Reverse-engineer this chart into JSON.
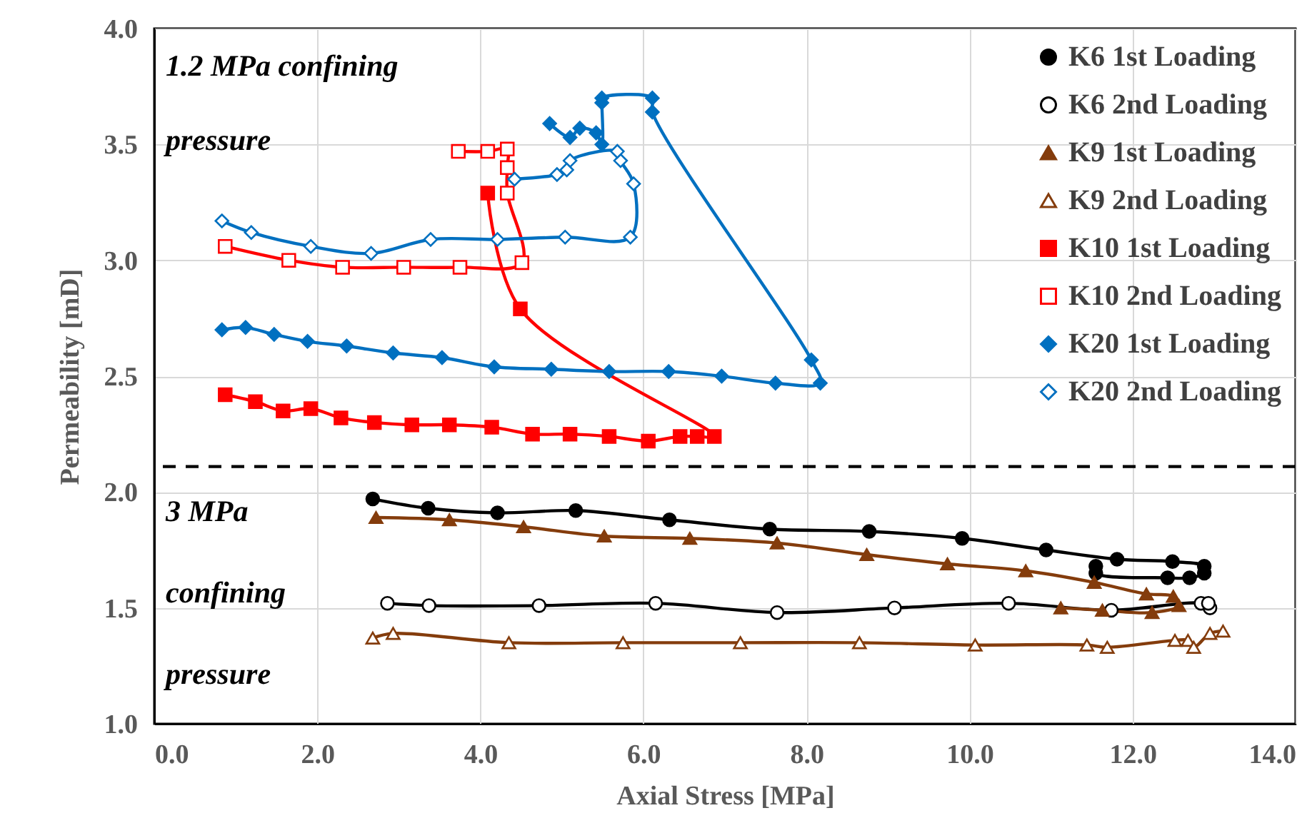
{
  "chart_data": {
    "type": "line",
    "xlabel": "Axial Stress [MPa]",
    "ylabel": "Permeability [mD]",
    "xlim": [
      0,
      14
    ],
    "xticks": [
      {
        "value": 0,
        "label": "0.0"
      },
      {
        "value": 2,
        "label": "2.0"
      },
      {
        "value": 4,
        "label": "4.0"
      },
      {
        "value": 6,
        "label": "6.0"
      },
      {
        "value": 8,
        "label": "8.0"
      },
      {
        "value": 10,
        "label": "10.0"
      },
      {
        "value": 12,
        "label": "12.0"
      },
      {
        "value": 14,
        "label": "14.0"
      }
    ],
    "ylim": [
      1,
      4
    ],
    "yticks": [
      {
        "value": 1,
        "label": "1.0"
      },
      {
        "value": 1.5,
        "label": "1.5"
      },
      {
        "value": 2,
        "label": "2.0"
      },
      {
        "value": 2.5,
        "label": "2.5"
      },
      {
        "value": 3,
        "label": "3.0"
      },
      {
        "value": 3.5,
        "label": "3.5"
      },
      {
        "value": 4,
        "label": "4.0"
      }
    ],
    "grid": true,
    "legend": "top right",
    "annotations": [
      "1.2 MPa confining pressure",
      "3 MPa confining pressure"
    ],
    "ref_lines": [
      {
        "axis": "y",
        "value": 2.11,
        "label": null,
        "color": "#000000",
        "line_style": "dashed"
      }
    ],
    "series": [
      {
        "name": "K6 1st Loading",
        "color": "#000000",
        "marker": "circle",
        "x": [
          2.68,
          3.36,
          4.21,
          5.17,
          6.32,
          7.55,
          8.77,
          9.91,
          10.94,
          11.81,
          12.49,
          12.88,
          12.88,
          12.7,
          12.43,
          11.55,
          11.55
        ],
        "values": [
          1.97,
          1.93,
          1.91,
          1.92,
          1.88,
          1.84,
          1.83,
          1.8,
          1.75,
          1.71,
          1.7,
          1.68,
          1.65,
          1.63,
          1.63,
          1.65,
          1.68
        ]
      },
      {
        "name": "K6 2nd Loading",
        "color": "#000000",
        "marker": "circle-open",
        "x": [
          2.86,
          3.37,
          4.72,
          6.15,
          7.64,
          9.08,
          10.48,
          11.74,
          12.84,
          12.95,
          12.93
        ],
        "values": [
          1.52,
          1.51,
          1.51,
          1.52,
          1.48,
          1.5,
          1.52,
          1.49,
          1.52,
          1.5,
          1.52
        ]
      },
      {
        "name": "K9 1st Loading",
        "color": "#843c0c",
        "marker": "triangle",
        "x": [
          2.72,
          3.62,
          4.53,
          5.52,
          6.57,
          7.64,
          8.74,
          9.73,
          10.69,
          11.53,
          12.17,
          12.5,
          12.57,
          12.24,
          11.63,
          11.12
        ],
        "values": [
          1.89,
          1.88,
          1.85,
          1.81,
          1.8,
          1.78,
          1.73,
          1.69,
          1.66,
          1.61,
          1.56,
          1.55,
          1.51,
          1.48,
          1.49,
          1.5
        ]
      },
      {
        "name": "K9 2nd Loading",
        "color": "#843c0c",
        "marker": "triangle-open",
        "x": [
          2.68,
          2.93,
          4.35,
          5.75,
          7.19,
          8.65,
          10.07,
          11.44,
          11.69,
          12.52,
          12.68,
          12.75,
          12.95,
          13.11
        ],
        "values": [
          1.37,
          1.39,
          1.35,
          1.35,
          1.35,
          1.35,
          1.34,
          1.34,
          1.33,
          1.36,
          1.36,
          1.33,
          1.39,
          1.4
        ]
      },
      {
        "name": "K10 1st Loading",
        "color": "#ff0000",
        "marker": "square",
        "x": [
          0.87,
          1.24,
          1.58,
          1.92,
          2.29,
          2.7,
          3.16,
          3.62,
          4.14,
          4.64,
          5.1,
          5.58,
          6.06,
          6.45,
          6.66,
          6.87,
          4.49,
          4.09
        ],
        "values": [
          2.42,
          2.39,
          2.35,
          2.36,
          2.32,
          2.3,
          2.29,
          2.29,
          2.28,
          2.25,
          2.25,
          2.24,
          2.22,
          2.24,
          2.24,
          2.24,
          2.79,
          3.29
        ]
      },
      {
        "name": "K10 2nd Loading",
        "color": "#ff0000",
        "marker": "square-open",
        "x": [
          0.87,
          1.65,
          2.31,
          3.06,
          3.75,
          4.51,
          4.33,
          4.33,
          4.33,
          4.09,
          3.73
        ],
        "values": [
          3.06,
          3.0,
          2.97,
          2.97,
          2.97,
          2.99,
          3.29,
          3.4,
          3.48,
          3.47,
          3.47
        ]
      },
      {
        "name": "K20 1st Loading",
        "color": "#0070c0",
        "marker": "diamond",
        "x": [
          4.85,
          5.1,
          5.22,
          5.42,
          5.49,
          5.49,
          5.49,
          6.11,
          6.11,
          8.06,
          8.17,
          7.62,
          6.96,
          6.31,
          5.58,
          4.87,
          4.17,
          3.53,
          2.93,
          2.36,
          1.88,
          1.47,
          1.12,
          0.83
        ],
        "values": [
          3.59,
          3.53,
          3.57,
          3.55,
          3.5,
          3.68,
          3.7,
          3.7,
          3.64,
          2.57,
          2.47,
          2.47,
          2.5,
          2.52,
          2.52,
          2.53,
          2.54,
          2.58,
          2.6,
          2.63,
          2.65,
          2.68,
          2.71,
          2.7
        ]
      },
      {
        "name": "K20 2nd Loading",
        "color": "#0070c0",
        "marker": "diamond-open",
        "x": [
          0.83,
          1.19,
          1.92,
          2.66,
          3.39,
          4.21,
          5.04,
          5.84,
          5.88,
          5.72,
          5.68,
          5.1,
          5.06,
          4.94,
          4.42
        ],
        "values": [
          3.17,
          3.12,
          3.06,
          3.03,
          3.09,
          3.09,
          3.1,
          3.1,
          3.33,
          3.43,
          3.47,
          3.43,
          3.39,
          3.37,
          3.35
        ]
      }
    ]
  }
}
